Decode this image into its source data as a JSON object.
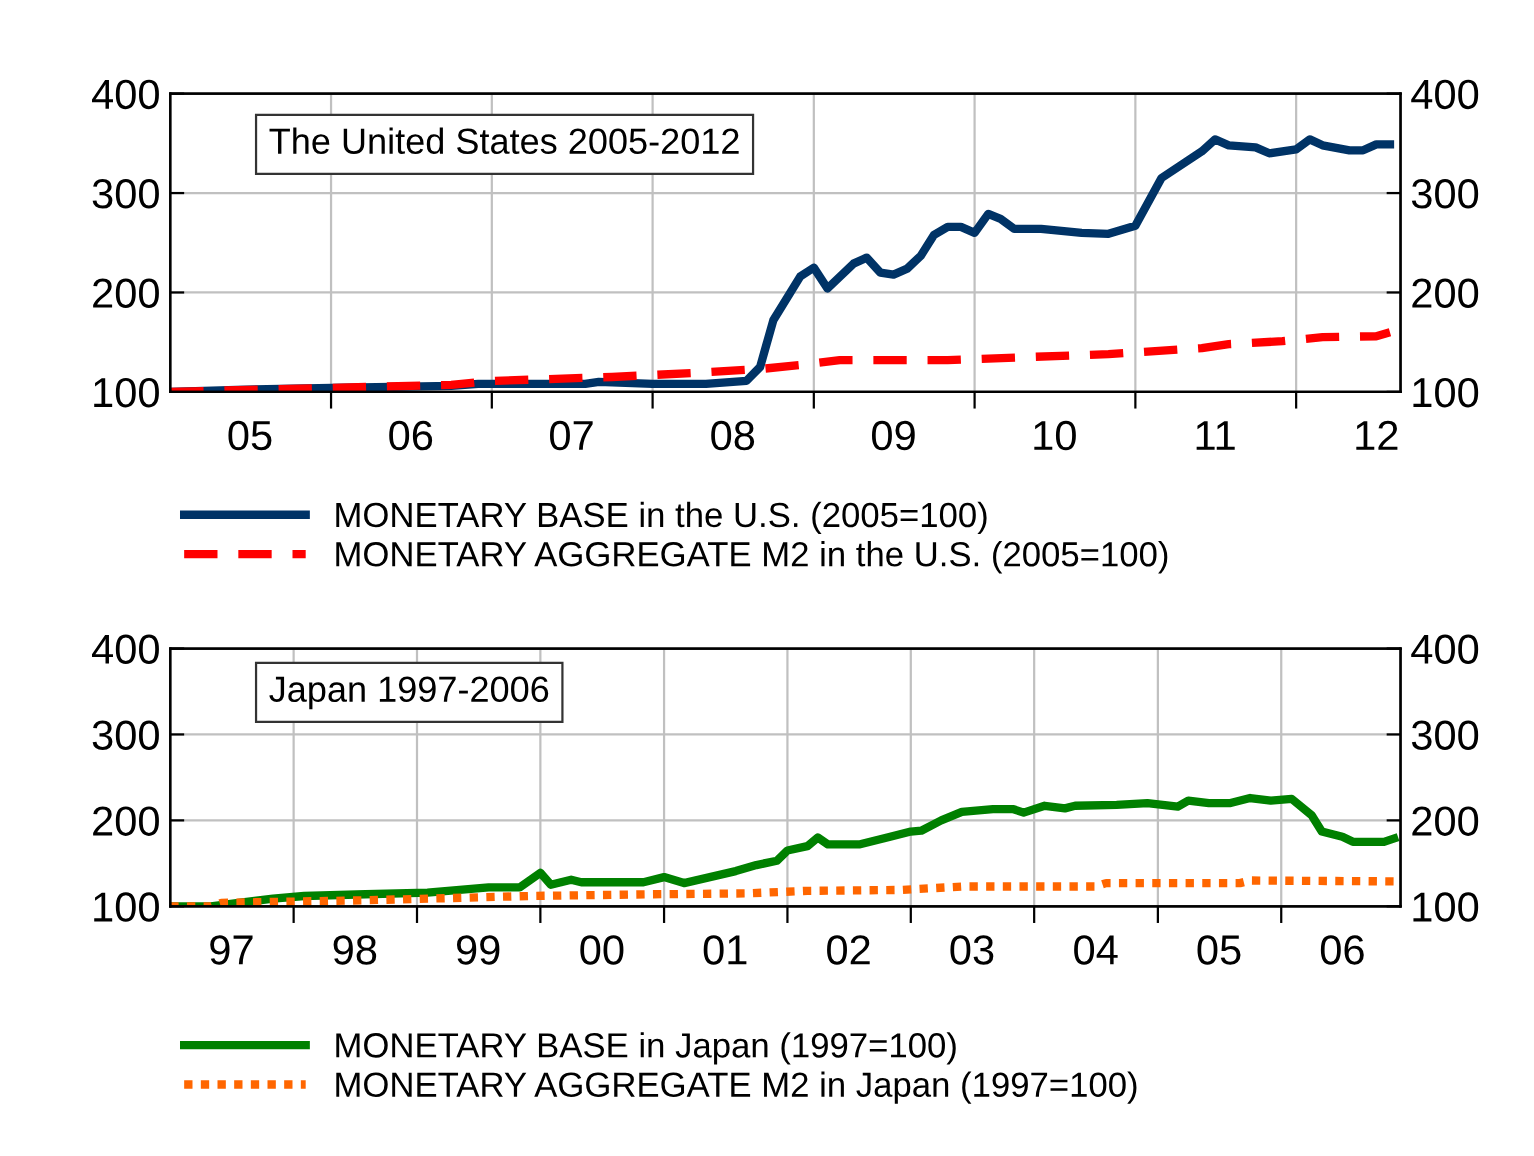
{
  "chart_data": [
    {
      "type": "line",
      "title": "The United States 2005-2012",
      "xlim": [
        "2005-01-01",
        "2012-08-25"
      ],
      "ylim": [
        100,
        400
      ],
      "yticks": [
        100,
        200,
        300,
        400
      ],
      "y2lim": [
        100,
        400
      ],
      "y2ticks": [
        100,
        200,
        300,
        400
      ],
      "xticks": [
        {
          "value": "2006-01-01",
          "label": null
        },
        {
          "value": "2007-01-01",
          "label": null
        },
        {
          "value": "2008-01-01",
          "label": null
        },
        {
          "value": "2009-01-01",
          "label": null
        },
        {
          "value": "2010-01-01",
          "label": null
        },
        {
          "value": "2011-01-01",
          "label": null
        },
        {
          "value": "2012-01-01",
          "label": null
        },
        {
          "value": "2005-07-01",
          "label": "05"
        },
        {
          "value": "2006-07-01",
          "label": "06"
        },
        {
          "value": "2007-07-01",
          "label": "07"
        },
        {
          "value": "2008-07-01",
          "label": "08"
        },
        {
          "value": "2009-07-01",
          "label": "09"
        },
        {
          "value": "2010-07-01",
          "label": "10"
        },
        {
          "value": "2011-07-01",
          "label": "11"
        },
        {
          "value": "2012-07-01",
          "label": "12"
        }
      ],
      "grid": true,
      "legend": "bottom",
      "series": [
        {
          "name": "MONETARY BASE in the U.S. (2005=100)",
          "color": "#003366",
          "line_style": "solid",
          "x": [
            "2005-01",
            "2005-06",
            "2006-01",
            "2006-10",
            "2006-12",
            "2007-08",
            "2007-09",
            "2008-01",
            "2008-05",
            "2008-08",
            "2008-09",
            "2008-10",
            "2008-12",
            "2009-01",
            "2009-02",
            "2009-04",
            "2009-05",
            "2009-06",
            "2009-07",
            "2009-08",
            "2009-09",
            "2009-10",
            "2009-11",
            "2009-12",
            "2010-01",
            "2010-02",
            "2010-03",
            "2010-04",
            "2010-06",
            "2010-09",
            "2010-11",
            "2011-01",
            "2011-03",
            "2011-06",
            "2011-07",
            "2011-08",
            "2011-10",
            "2011-11",
            "2012-01",
            "2012-02",
            "2012-03",
            "2012-05",
            "2012-06",
            "2012-07",
            "2012-08"
          ],
          "values": [
            100,
            102,
            104,
            106,
            108,
            108,
            110,
            108,
            108,
            111,
            125,
            172,
            216,
            225,
            204,
            229,
            235,
            220,
            218,
            224,
            237,
            258,
            266,
            266,
            260,
            279,
            274,
            264,
            264,
            260,
            259,
            267,
            315,
            342,
            354,
            348,
            346,
            340,
            344,
            354,
            348,
            343,
            343,
            349,
            349
          ]
        },
        {
          "name": "MONETARY AGGREGATE M2 in the U.S. (2005=100)",
          "color": "#ff0000",
          "line_style": "dashed",
          "x": [
            "2005-01",
            "2005-07",
            "2006-01",
            "2006-10",
            "2007-01",
            "2007-10",
            "2008-04",
            "2008-09",
            "2008-12",
            "2009-03",
            "2009-11",
            "2010-05",
            "2010-11",
            "2011-06",
            "2011-08",
            "2011-12",
            "2012-03",
            "2012-07",
            "2012-08"
          ],
          "values": [
            100,
            102,
            104,
            107,
            111,
            115,
            119,
            123,
            127,
            132,
            132,
            135,
            138,
            144,
            148,
            151,
            155,
            156,
            160
          ]
        }
      ]
    },
    {
      "type": "line",
      "title": "Japan 1997-2006",
      "xlim": [
        "1997-01-01",
        "2006-12-20"
      ],
      "ylim": [
        100,
        400
      ],
      "yticks": [
        100,
        200,
        300,
        400
      ],
      "y2lim": [
        100,
        400
      ],
      "y2ticks": [
        100,
        200,
        300,
        400
      ],
      "xticks": [
        {
          "value": "1998-01-01",
          "label": null
        },
        {
          "value": "1999-01-01",
          "label": null
        },
        {
          "value": "2000-01-01",
          "label": null
        },
        {
          "value": "2001-01-01",
          "label": null
        },
        {
          "value": "2002-01-01",
          "label": null
        },
        {
          "value": "2003-01-01",
          "label": null
        },
        {
          "value": "2004-01-01",
          "label": null
        },
        {
          "value": "2005-01-01",
          "label": null
        },
        {
          "value": "2006-01-01",
          "label": null
        },
        {
          "value": "1997-07-01",
          "label": "97"
        },
        {
          "value": "1998-07-01",
          "label": "98"
        },
        {
          "value": "1999-07-01",
          "label": "99"
        },
        {
          "value": "2000-07-01",
          "label": "00"
        },
        {
          "value": "2001-07-01",
          "label": "01"
        },
        {
          "value": "2002-07-01",
          "label": "02"
        },
        {
          "value": "2003-07-01",
          "label": "03"
        },
        {
          "value": "2004-07-01",
          "label": "04"
        },
        {
          "value": "2005-07-01",
          "label": "05"
        },
        {
          "value": "2006-07-01",
          "label": "06"
        }
      ],
      "grid": true,
      "legend": "bottom",
      "series": [
        {
          "name": "MONETARY BASE in Japan (1997=100)",
          "color": "#008000",
          "line_style": "solid",
          "x": [
            "1997-01",
            "1997-05",
            "1997-11",
            "1998-02",
            "1998-08",
            "1999-02",
            "1999-08",
            "1999-11",
            "2000-01",
            "2000-02",
            "2000-04",
            "2000-05",
            "2000-11",
            "2001-01",
            "2001-03",
            "2001-08",
            "2001-10",
            "2001-12",
            "2002-01",
            "2002-03",
            "2002-04",
            "2002-05",
            "2002-08",
            "2002-11",
            "2003-01",
            "2003-02",
            "2003-04",
            "2003-06",
            "2003-09",
            "2003-11",
            "2003-12",
            "2004-02",
            "2004-04",
            "2004-05",
            "2004-09",
            "2004-12",
            "2005-03",
            "2005-04",
            "2005-06",
            "2005-08",
            "2005-10",
            "2005-12",
            "2006-02",
            "2006-04",
            "2006-05",
            "2006-07",
            "2006-08",
            "2006-11",
            "2006-12"
          ],
          "values": [
            100,
            100,
            109,
            112,
            114,
            116,
            122,
            122,
            139,
            125,
            131,
            128,
            128,
            134,
            127,
            141,
            148,
            153,
            165,
            170,
            180,
            172,
            172,
            181,
            187,
            188,
            200,
            210,
            213,
            213,
            209,
            217,
            214,
            217,
            218,
            220,
            216,
            223,
            220,
            220,
            226,
            223,
            225,
            206,
            187,
            181,
            175,
            175,
            179
          ]
        },
        {
          "name": "MONETARY AGGREGATE M2 in Japan (1997=100)",
          "color": "#ff6600",
          "line_style": "dotted",
          "x": [
            "1997-01",
            "1997-05",
            "1997-06",
            "1998-08",
            "1999-12",
            "2000-12",
            "2001-09",
            "2002-03",
            "2002-12",
            "2003-06",
            "2004-07",
            "2004-08",
            "2005-09",
            "2005-10",
            "2006-12"
          ],
          "values": [
            100,
            100,
            104,
            107,
            112,
            114,
            115,
            118,
            119,
            123,
            123,
            127,
            127,
            130,
            129
          ]
        }
      ]
    }
  ]
}
